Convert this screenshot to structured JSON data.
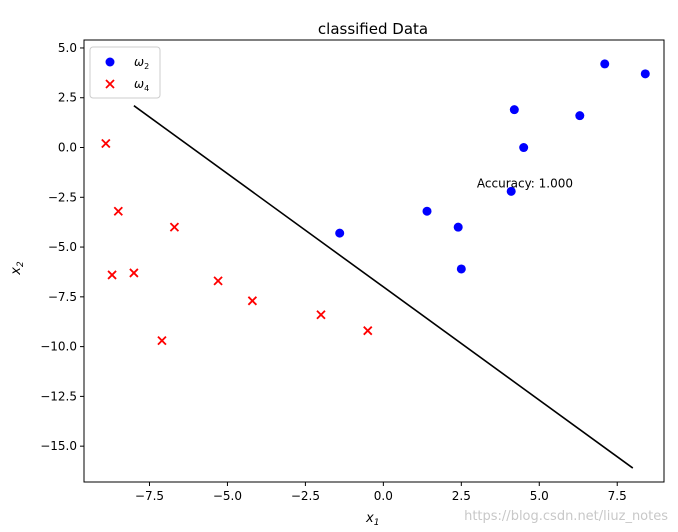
{
  "chart_data": {
    "type": "scatter",
    "title": "classified Data",
    "xlabel": "x",
    "xlabel_sub": "1",
    "ylabel": "x",
    "ylabel_sub": "2",
    "xlim": [
      -9.6,
      9.0
    ],
    "ylim": [
      -16.8,
      5.4
    ],
    "xticks": [
      -7.5,
      -5.0,
      -2.5,
      0.0,
      2.5,
      5.0,
      7.5
    ],
    "xtick_labels": [
      "−7.5",
      "−5.0",
      "−2.5",
      "0.0",
      "2.5",
      "5.0",
      "7.5"
    ],
    "yticks": [
      5.0,
      2.5,
      0.0,
      -2.5,
      -5.0,
      -7.5,
      -10.0,
      -12.5,
      -15.0
    ],
    "ytick_labels": [
      "5.0",
      "2.5",
      "0.0",
      "−2.5",
      "−5.0",
      "−7.5",
      "−10.0",
      "−12.5",
      "−15.0"
    ],
    "grid": false,
    "legend_position": "top-left",
    "series": [
      {
        "name": "ω",
        "name_sub": "2",
        "marker": "circle",
        "color": "#0000ff",
        "points": [
          {
            "x": -1.4,
            "y": -4.3
          },
          {
            "x": 1.4,
            "y": -3.2
          },
          {
            "x": 2.4,
            "y": -4.0
          },
          {
            "x": 2.5,
            "y": -6.1
          },
          {
            "x": 4.1,
            "y": -2.2
          },
          {
            "x": 4.2,
            "y": 1.9
          },
          {
            "x": 4.5,
            "y": 0.0
          },
          {
            "x": 6.3,
            "y": 1.6
          },
          {
            "x": 7.1,
            "y": 4.2
          },
          {
            "x": 8.4,
            "y": 3.7
          }
        ]
      },
      {
        "name": "ω",
        "name_sub": "4",
        "marker": "x",
        "color": "#ff0000",
        "points": [
          {
            "x": -8.9,
            "y": 0.2
          },
          {
            "x": -8.5,
            "y": -3.2
          },
          {
            "x": -8.7,
            "y": -6.4
          },
          {
            "x": -8.0,
            "y": -6.3
          },
          {
            "x": -6.7,
            "y": -4.0
          },
          {
            "x": -7.1,
            "y": -9.7
          },
          {
            "x": -5.3,
            "y": -6.7
          },
          {
            "x": -4.2,
            "y": -7.7
          },
          {
            "x": -2.0,
            "y": -8.4
          },
          {
            "x": -0.5,
            "y": -9.2
          }
        ]
      }
    ],
    "boundary_line": {
      "color": "#000000",
      "points": [
        {
          "x": -8.0,
          "y": 2.1
        },
        {
          "x": 8.0,
          "y": -16.1
        }
      ]
    },
    "annotation": {
      "text": "Accuracy: 1.000",
      "x": 3.0,
      "y": -2.0
    }
  },
  "watermark": "https://blog.csdn.net/liuz_notes"
}
